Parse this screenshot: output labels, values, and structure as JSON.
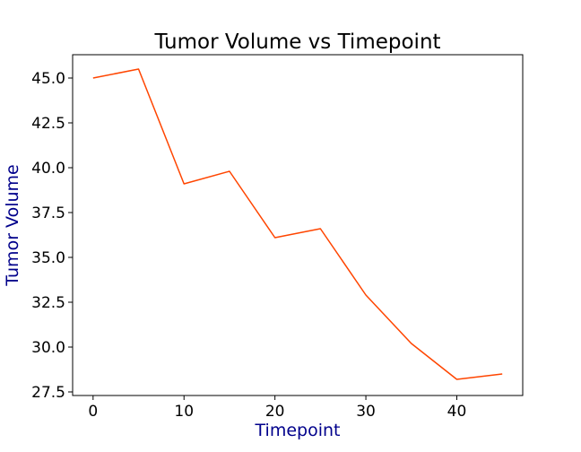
{
  "chart_data": {
    "type": "line",
    "title": "Tumor Volume vs Timepoint",
    "xlabel": "Timepoint",
    "ylabel": "Tumor Volume",
    "xlim": [
      -2.25,
      47.25
    ],
    "ylim": [
      27.3,
      46.3
    ],
    "xticks": [
      0,
      10,
      20,
      30,
      40
    ],
    "xtick_labels": [
      "0",
      "10",
      "20",
      "30",
      "40"
    ],
    "yticks": [
      27.5,
      30.0,
      32.5,
      35.0,
      37.5,
      40.0,
      42.5,
      45.0
    ],
    "ytick_labels": [
      "27.5",
      "30.0",
      "32.5",
      "35.0",
      "37.5",
      "40.0",
      "42.5",
      "45.0"
    ],
    "grid": false,
    "series": [
      {
        "x": [
          0,
          5,
          10,
          15,
          20,
          25,
          30,
          35,
          40,
          45
        ],
        "values": [
          45.0,
          45.5,
          39.1,
          39.8,
          36.1,
          36.6,
          32.9,
          30.2,
          28.2,
          28.5
        ],
        "color": "#ff4500"
      }
    ],
    "label_color": "#00008b"
  }
}
